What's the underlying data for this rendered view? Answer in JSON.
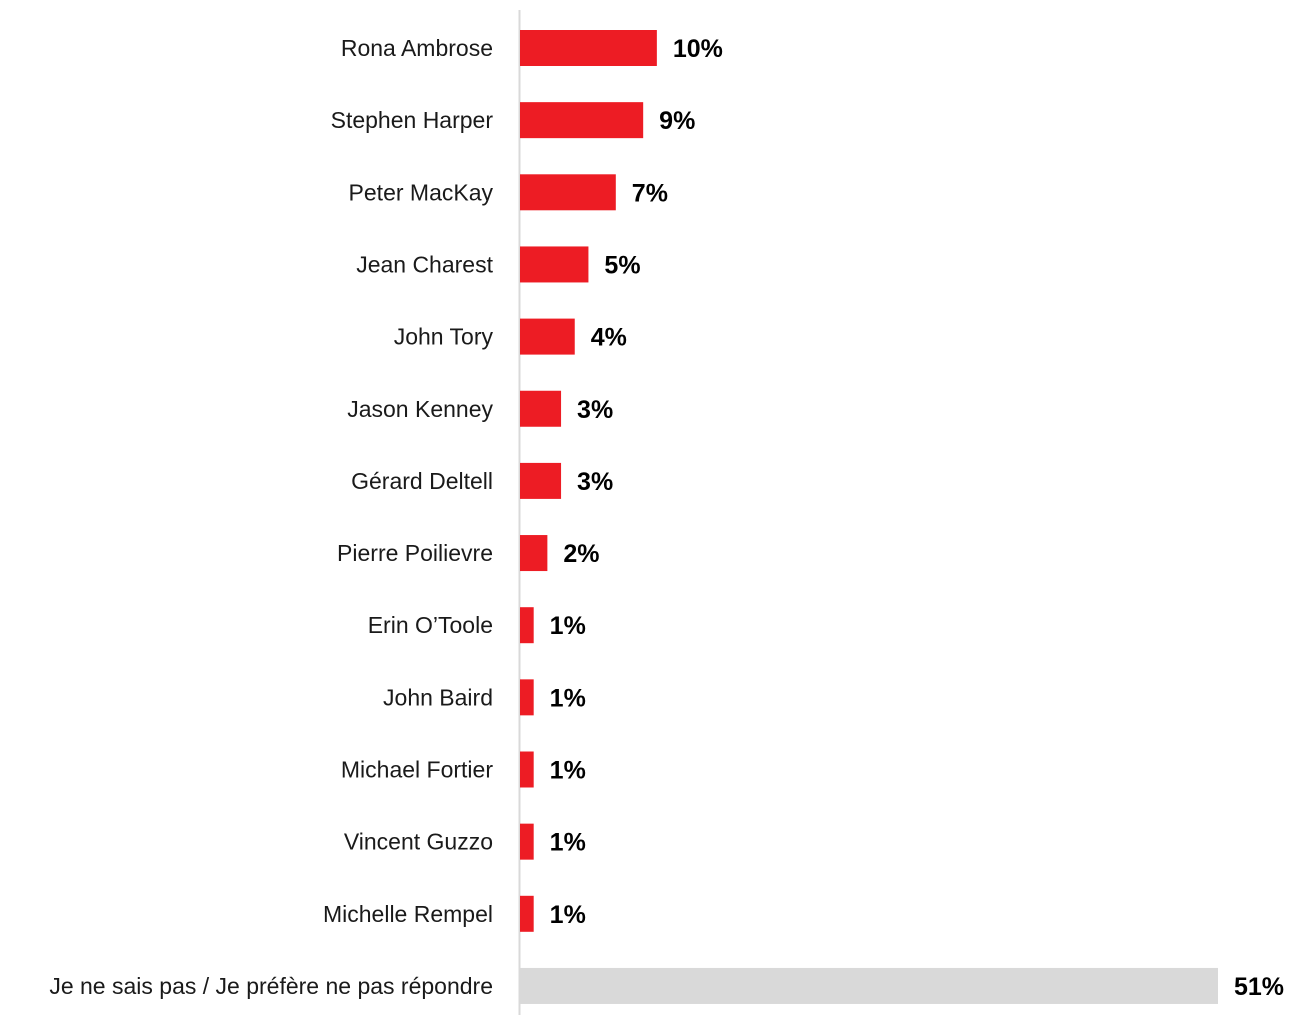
{
  "chart_data": {
    "type": "bar",
    "orientation": "horizontal",
    "categories": [
      "Rona Ambrose",
      "Stephen Harper",
      "Peter MacKay",
      "Jean Charest",
      "John Tory",
      "Jason Kenney",
      "Gérard Deltell",
      "Pierre Poilievre",
      "Erin O’Toole",
      "John Baird",
      "Michael Fortier",
      "Vincent Guzzo",
      "Michelle Rempel",
      "Je ne sais pas / Je préfère ne pas répondre"
    ],
    "values": [
      10,
      9,
      7,
      5,
      4,
      3,
      3,
      2,
      1,
      1,
      1,
      1,
      1,
      51
    ],
    "value_labels": [
      "10%",
      "9%",
      "7%",
      "5%",
      "4%",
      "3%",
      "3%",
      "2%",
      "1%",
      "1%",
      "1%",
      "1%",
      "1%",
      "51%"
    ],
    "bar_colors": [
      "#ed1c24",
      "#ed1c24",
      "#ed1c24",
      "#ed1c24",
      "#ed1c24",
      "#ed1c24",
      "#ed1c24",
      "#ed1c24",
      "#ed1c24",
      "#ed1c24",
      "#ed1c24",
      "#ed1c24",
      "#ed1c24",
      "#d9d9d9"
    ],
    "axis_line_color": "#d9d9d9",
    "xlim": [
      0,
      51
    ],
    "title": "",
    "xlabel": "",
    "ylabel": "",
    "grid": false,
    "legend": "none"
  }
}
